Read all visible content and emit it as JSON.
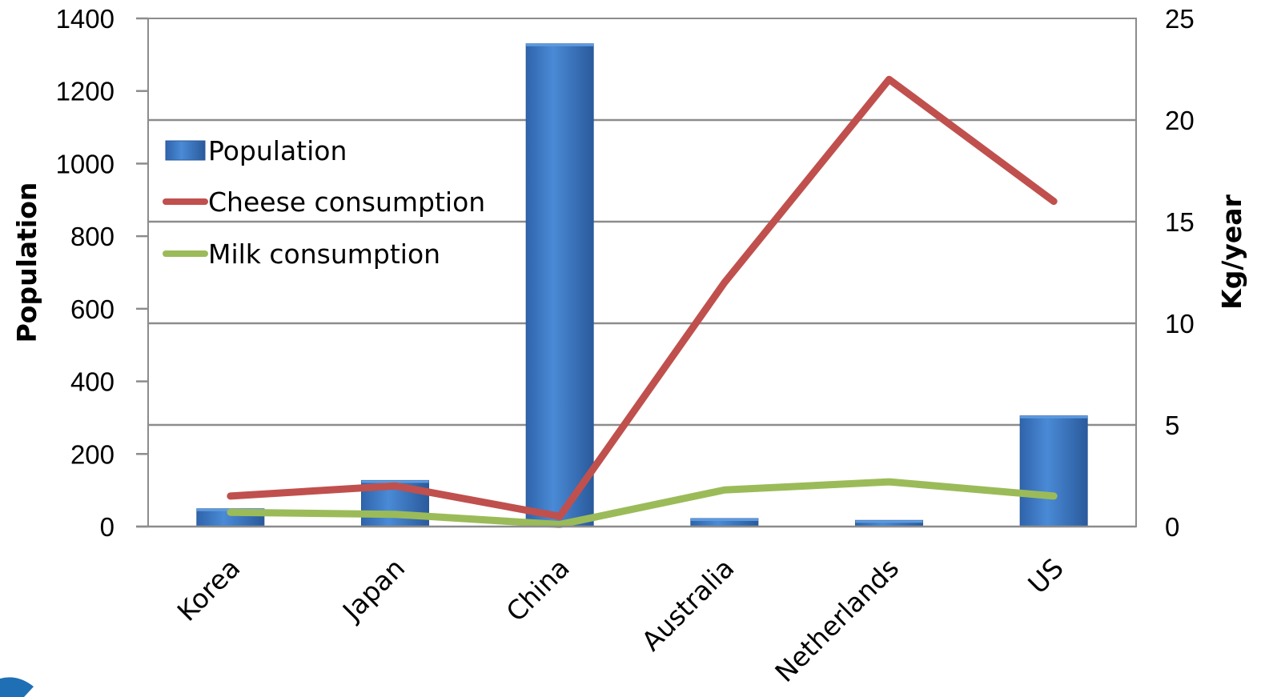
{
  "chart_data": {
    "type": "bar",
    "categories": [
      "Korea",
      "Japan",
      "China",
      "Australia",
      "Netherlands",
      "US"
    ],
    "ylabel": "Population",
    "y2label": "Kg/year",
    "ylim": [
      0,
      1400
    ],
    "y2lim": [
      0,
      25
    ],
    "yticks": [
      "0",
      "200",
      "400",
      "600",
      "800",
      "1000",
      "1200",
      "1400"
    ],
    "y2ticks": [
      "0",
      "5",
      "10",
      "15",
      "20",
      "25"
    ],
    "series": [
      {
        "name": "Population",
        "type": "bar",
        "axis": "left",
        "values": [
          49,
          127,
          1330,
          22,
          17,
          305
        ],
        "color": "#3f7fcf"
      },
      {
        "name": "Cheese consumption",
        "type": "line",
        "axis": "right",
        "values": [
          1.5,
          2.0,
          0.5,
          12.0,
          22.0,
          16.0
        ],
        "color": "#c0504d"
      },
      {
        "name": "Milk consumption",
        "type": "line",
        "axis": "right",
        "values": [
          0.7,
          0.6,
          0.1,
          1.8,
          2.2,
          1.5
        ],
        "color": "#9bbb59"
      }
    ],
    "grid": "horizontal at right-axis ticks",
    "legend": "top-left"
  }
}
